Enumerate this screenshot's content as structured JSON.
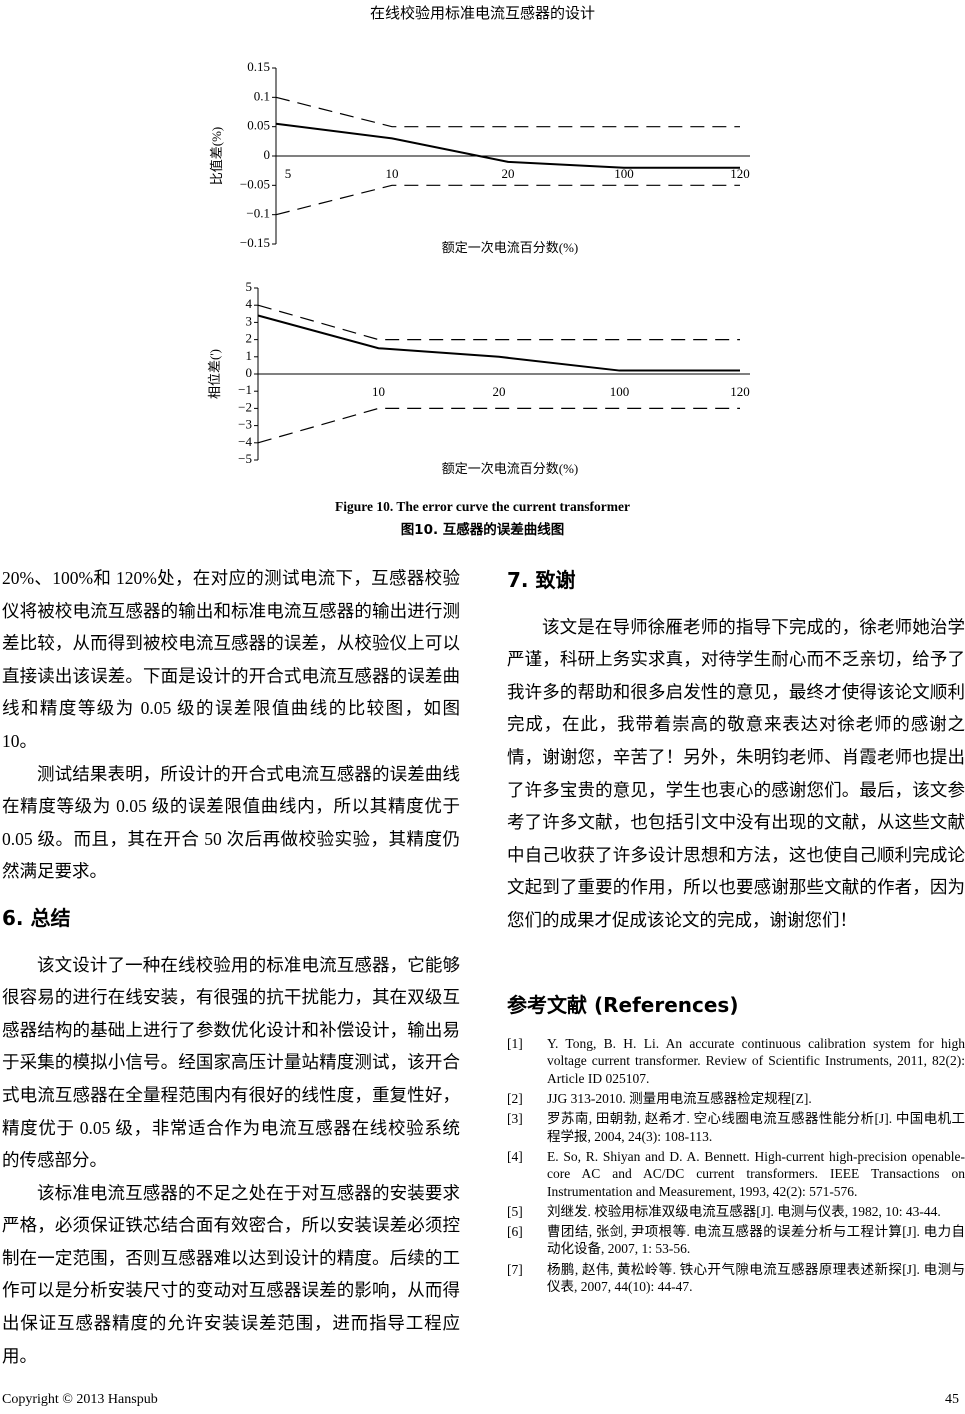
{
  "header": {
    "title": "在线校验用标准电流互感器的设计"
  },
  "chart_data": [
    {
      "type": "line",
      "ylabel": "比值差(%)",
      "xlabel": "额定一次电流百分数(%)",
      "categories": [
        "5",
        "10",
        "20",
        "100",
        "120"
      ],
      "ylim": [
        -0.15,
        0.15
      ],
      "yticks": [
        0.15,
        0.1,
        0.05,
        0,
        {
          "value": -0.05,
          "label": "−0.05"
        },
        {
          "value": -0.1,
          "label": "−0.1"
        },
        {
          "value": -0.15,
          "label": "−0.15"
        }
      ],
      "series": [
        {
          "color": "#000000",
          "dash": false,
          "values": [
            0.055,
            0.03,
            -0.01,
            -0.02,
            -0.02
          ]
        },
        {
          "color": "#000000",
          "dash": true,
          "values": [
            0.1,
            0.05,
            0.05,
            0.05,
            0.05
          ]
        },
        {
          "color": "#000000",
          "dash": true,
          "values": [
            -0.1,
            -0.05,
            -0.05,
            -0.05,
            -0.05
          ]
        }
      ]
    },
    {
      "type": "line",
      "ylabel": "相位差(')",
      "xlabel": "额定一次电流百分数(%)",
      "categories": [
        null,
        "10",
        "20",
        "100",
        "120"
      ],
      "ylim": [
        -5,
        5
      ],
      "yticks": [
        5,
        4,
        3,
        2,
        1,
        0,
        {
          "value": -1,
          "label": "−1"
        },
        {
          "value": -2,
          "label": "−2"
        },
        {
          "value": -3,
          "label": "−3"
        },
        {
          "value": -4,
          "label": "−4"
        },
        {
          "value": -5,
          "label": "−5"
        }
      ],
      "series": [
        {
          "color": "#000000",
          "dash": false,
          "values": [
            3.4,
            1.5,
            1.0,
            0.2,
            0.2
          ]
        },
        {
          "color": "#000000",
          "dash": true,
          "values": [
            4,
            2,
            2,
            2,
            2
          ]
        },
        {
          "color": "#000000",
          "dash": true,
          "values": [
            -4,
            -2,
            -2,
            -2,
            -2
          ]
        }
      ]
    }
  ],
  "figure": {
    "caption_en": "Figure 10. The error curve the current transformer",
    "caption_zh": "图10.  互感器的误差曲线图"
  },
  "left": {
    "paragraphs": [
      "20%、100%和 120%处，在对应的测试电流下，互感器校验仪将被校电流互感器的输出和标准电流互感器的输出进行测差比较，从而得到被校电流互感器的误差，从校验仪上可以直接读出该误差。下面是设计的开合式电流互感器的误差曲线和精度等级为 0.05 级的误差限值曲线的比较图，如图 10。",
      "测试结果表明，所设计的开合式电流互感器的误差曲线在精度等级为 0.05 级的误差限值曲线内，所以其精度优于 0.05 级。而且，其在开合 50 次后再做校验实验，其精度仍然满足要求。"
    ],
    "heading": "6. 总结",
    "paragraphs2": [
      "该文设计了一种在线校验用的标准电流互感器，它能够很容易的进行在线安装，有很强的抗干扰能力，其在双级互感器结构的基础上进行了参数优化设计和补偿设计，输出易于采集的模拟小信号。经国家高压计量站精度测试，该开合式电流互感器在全量程范围内有很好的线性度，重复性好，精度优于 0.05 级，非常适合作为电流互感器在线校验系统的传感部分。",
      "该标准电流互感器的不足之处在于对互感器的安装要求严格，必须保证铁芯结合面有效密合，所以安装误差必须控制在一定范围，否则互感器难以达到设计的精度。后续的工作可以是分析安装尺寸的变动对互感器误差的影响，从而得出保证互感器精度的允许安装误差范围，进而指导工程应用。"
    ]
  },
  "right": {
    "heading": "7. 致谢",
    "paragraph": "该文是在导师徐雁老师的指导下完成的，徐老师她治学严谨，科研上务实求真，对待学生耐心而不乏亲切，给予了我许多的帮助和很多启发性的意见，最终才使得该论文顺利完成，在此，我带着崇高的敬意来表达对徐老师的感谢之情，谢谢您，辛苦了！另外，朱明钧老师、肖霞老师也提出了许多宝贵的意见，学生也衷心的感谢您们。最后，该文参考了许多文献，也包括引文中没有出现的文献，从这些文献中自己收获了许多设计思想和方法，这也使自己顺利完成论文起到了重要的作用，所以也要感谢那些文献的作者，因为您们的成果才促成该论文的完成，谢谢您们！",
    "ref_heading": "参考文献 (References)",
    "references": [
      {
        "num": "[1]",
        "text": "Y. Tong, B. H. Li. An accurate continuous calibration system for high voltage current transformer. Review of Scientific Instruments, 2011, 82(2): Article ID 025107."
      },
      {
        "num": "[2]",
        "text": "JJG 313-2010. 测量用电流互感器检定规程[Z]."
      },
      {
        "num": "[3]",
        "text": "罗苏南, 田朝勃, 赵希才. 空心线圈电流互感器性能分析[J]. 中国电机工程学报, 2004, 24(3): 108-113."
      },
      {
        "num": "[4]",
        "text": "E. So, R. Shiyan and D. A. Bennett. High-current high-precision openable-core AC and AC/DC current transformers. IEEE Transactions on Instrumentation and Measurement, 1993, 42(2): 571-576."
      },
      {
        "num": "[5]",
        "text": "刘继发. 校验用标准双级电流互感器[J]. 电测与仪表, 1982, 10: 43-44."
      },
      {
        "num": "[6]",
        "text": "曹团结, 张剑, 尹项根等. 电流互感器的误差分析与工程计算[J]. 电力自动化设备, 2007, 1: 53-56."
      },
      {
        "num": "[7]",
        "text": "杨鹏, 赵伟, 黄松岭等. 铁心开气隙电流互感器原理表述新探[J]. 电测与仪表, 2007, 44(10): 44-47."
      }
    ]
  },
  "footer": {
    "copyright": "Copyright © 2013 Hanspub",
    "page": "45"
  }
}
